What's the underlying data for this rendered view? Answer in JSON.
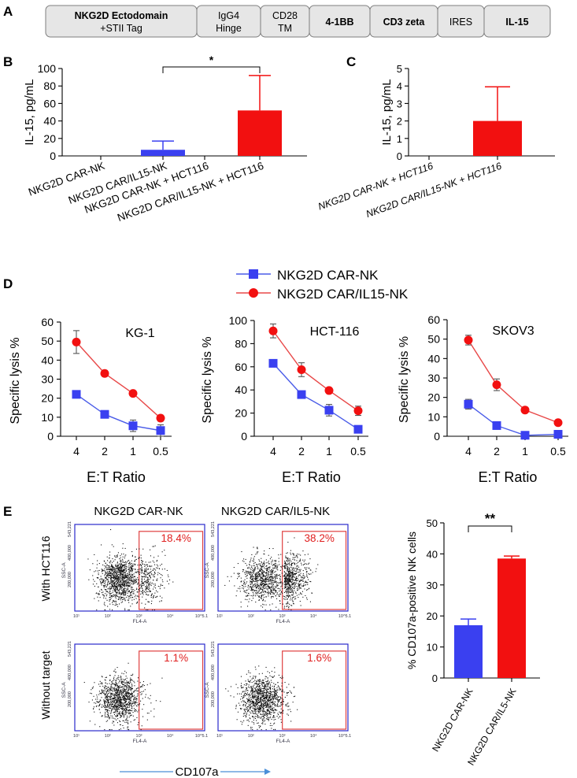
{
  "panel_labels": {
    "a": "A",
    "b": "B",
    "c": "C",
    "d": "D",
    "e": "E"
  },
  "construct": [
    {
      "label": "NKG2D Ectodomain",
      "sub": "+STII Tag",
      "bold": true
    },
    {
      "label": "IgG4",
      "sub": "Hinge",
      "bold": false
    },
    {
      "label": "CD28",
      "sub": "TM",
      "bold": false
    },
    {
      "label": "4-1BB",
      "sub": "",
      "bold": true
    },
    {
      "label": "CD3 zeta",
      "sub": "",
      "bold": true
    },
    {
      "label": "IRES",
      "sub": "",
      "bold": false
    },
    {
      "label": "IL-15",
      "sub": "",
      "bold": true
    }
  ],
  "colors": {
    "blue": "#3a40f0",
    "red": "#f21010",
    "blue_line": "#4a5ce8",
    "red_line": "#e84848",
    "gate": "#e04040",
    "flow_frame": "#2a2acc",
    "arrow": "#4a8fd8"
  },
  "chart_data": [
    {
      "id": "B",
      "type": "bar",
      "ylabel": "IL-15, pg/mL",
      "ylim": [
        0,
        100
      ],
      "yticks": [
        0,
        20,
        40,
        60,
        80,
        100
      ],
      "categories": [
        "NKG2D CAR-NK",
        "NKG2D CAR/IL15-NK",
        "NKG2D CAR-NK + HCT116",
        "NKG2D CAR/IL15-NK + HCT116"
      ],
      "values": [
        0,
        7,
        0,
        52
      ],
      "errors": [
        0,
        10,
        0,
        40
      ],
      "bar_colors": [
        "blue",
        "blue",
        "red",
        "red"
      ],
      "annotation": {
        "text": "*",
        "from": 1,
        "to": 3
      }
    },
    {
      "id": "C",
      "type": "bar",
      "ylabel": "IL-15, pg/mL",
      "ylim": [
        0,
        5
      ],
      "yticks": [
        0,
        1,
        2,
        3,
        4,
        5
      ],
      "categories": [
        "NKG2D CAR-NK + HCT116",
        "NKG2D CAR/IL15-NK + HCT116"
      ],
      "values": [
        0,
        2
      ],
      "errors": [
        0,
        1.95
      ],
      "bar_colors": [
        "red",
        "red"
      ]
    },
    {
      "id": "D",
      "type": "line",
      "legend": [
        "NKG2D CAR-NK",
        "NKG2D CAR/IL15-NK"
      ],
      "xlabel": "E:T Ratio",
      "ylabel": "Specific lysis %",
      "x": [
        "4",
        "2",
        "1",
        "0.5"
      ],
      "panels": [
        {
          "title": "KG-1",
          "ylim": [
            0,
            60
          ],
          "yticks": [
            0,
            10,
            20,
            30,
            40,
            50,
            60
          ],
          "series": [
            {
              "name": "NKG2D CAR-NK",
              "values": [
                22,
                11.5,
                5.5,
                3
              ],
              "errors": [
                1.5,
                1,
                3,
                3
              ]
            },
            {
              "name": "NKG2D CAR/IL15-NK",
              "values": [
                49.5,
                33,
                22.5,
                9.5
              ],
              "errors": [
                6,
                1.5,
                0.5,
                1.5
              ]
            }
          ]
        },
        {
          "title": "HCT-116",
          "ylim": [
            0,
            100
          ],
          "yticks": [
            0,
            20,
            40,
            60,
            80,
            100
          ],
          "series": [
            {
              "name": "NKG2D CAR-NK",
              "values": [
                63,
                36,
                22.5,
                6
              ],
              "errors": [
                1,
                2,
                5,
                1
              ]
            },
            {
              "name": "NKG2D CAR/IL15-NK",
              "values": [
                91,
                57.5,
                39.5,
                22
              ],
              "errors": [
                6,
                6,
                2,
                4
              ]
            }
          ]
        },
        {
          "title": "SKOV3",
          "ylim": [
            0,
            60
          ],
          "yticks": [
            0,
            10,
            20,
            30,
            40,
            50,
            60
          ],
          "series": [
            {
              "name": "NKG2D CAR-NK",
              "values": [
                16.5,
                5.5,
                0.5,
                1
              ],
              "errors": [
                2.5,
                1,
                0.5,
                2
              ]
            },
            {
              "name": "NKG2D CAR/IL15-NK",
              "values": [
                49.5,
                26.5,
                13.5,
                7
              ],
              "errors": [
                2.5,
                3,
                0.5,
                0.5
              ]
            }
          ]
        }
      ]
    },
    {
      "id": "E-bar",
      "type": "bar",
      "ylabel": "% CD107a-positive NK cells",
      "ylim": [
        0,
        50
      ],
      "yticks": [
        0,
        10,
        20,
        30,
        40,
        50
      ],
      "categories": [
        "NKG2D CAR-NK",
        "NKG2D CAR/IL5-NK"
      ],
      "values": [
        17,
        38.5
      ],
      "errors": [
        2,
        0.8
      ],
      "bar_colors": [
        "blue",
        "red"
      ],
      "annotation": {
        "text": "**",
        "from": 0,
        "to": 1
      }
    }
  ],
  "flow": {
    "col_titles": [
      "NKG2D CAR-NK",
      "NKG2D CAR/IL5-NK"
    ],
    "row_labels": [
      "With HCT116",
      "Without target"
    ],
    "percents": [
      [
        "18.4%",
        "38.2%"
      ],
      [
        "1.1%",
        "1.6%"
      ]
    ],
    "y_axis_title": "SSC-A",
    "x_axis_title": "FL4-A",
    "y_ticks": [
      "543,221",
      "400,000",
      "200,000"
    ],
    "x_ticks": [
      "10¹",
      "10²",
      "10³",
      "10⁴",
      "10^5.1"
    ],
    "marker_label": "CD107a"
  }
}
